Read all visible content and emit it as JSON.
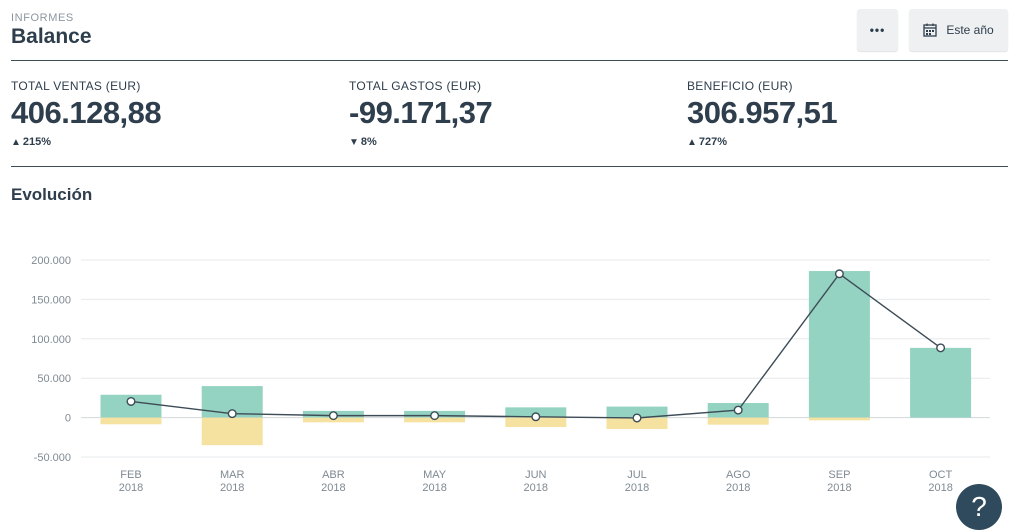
{
  "header": {
    "eyebrow": "INFORMES",
    "title": "Balance",
    "more_label": "•••",
    "period_label": "Este año"
  },
  "kpis": [
    {
      "label": "TOTAL VENTAS (EUR)",
      "value": "406.128,88",
      "arrow": "▲",
      "change": "215%"
    },
    {
      "label": "TOTAL GASTOS (EUR)",
      "value": "-99.171,37",
      "arrow": "▼",
      "change": "8%"
    },
    {
      "label": "BENEFICIO (EUR)",
      "value": "306.957,51",
      "arrow": "▲",
      "change": "727%"
    }
  ],
  "section_title": "Evolución",
  "colors": {
    "income": "#94d3c1",
    "expense": "#f5e2a0",
    "line": "#3d4c57",
    "grid": "#e6e9ec",
    "text": "#2e3e4c",
    "axis": "#7f8a93"
  },
  "help_label": "?",
  "chart_data": {
    "type": "bar",
    "categories": [
      "FEB",
      "MAR",
      "ABR",
      "MAY",
      "JUN",
      "JUL",
      "AGO",
      "SEP",
      "OCT"
    ],
    "years": [
      "2018",
      "2018",
      "2018",
      "2018",
      "2018",
      "2018",
      "2018",
      "2018",
      "2018"
    ],
    "series": [
      {
        "values": [
          29000,
          40000,
          8500,
          8500,
          13000,
          14000,
          18500,
          186000,
          88500
        ]
      },
      {
        "values": [
          -8500,
          -35000,
          -6000,
          -6000,
          -12000,
          -14500,
          -9000,
          -3500,
          0
        ]
      },
      {
        "type": "line",
        "values": [
          20500,
          5000,
          2500,
          2500,
          1000,
          -500,
          9500,
          182500,
          88500
        ]
      }
    ],
    "yticks": [
      200000,
      150000,
      100000,
      50000,
      0,
      -50000
    ],
    "ytick_labels": [
      "200.000",
      "150.000",
      "100.000",
      "50.000",
      "0",
      "-50.000"
    ],
    "ylim": [
      -50000,
      200000
    ],
    "grid": true
  }
}
